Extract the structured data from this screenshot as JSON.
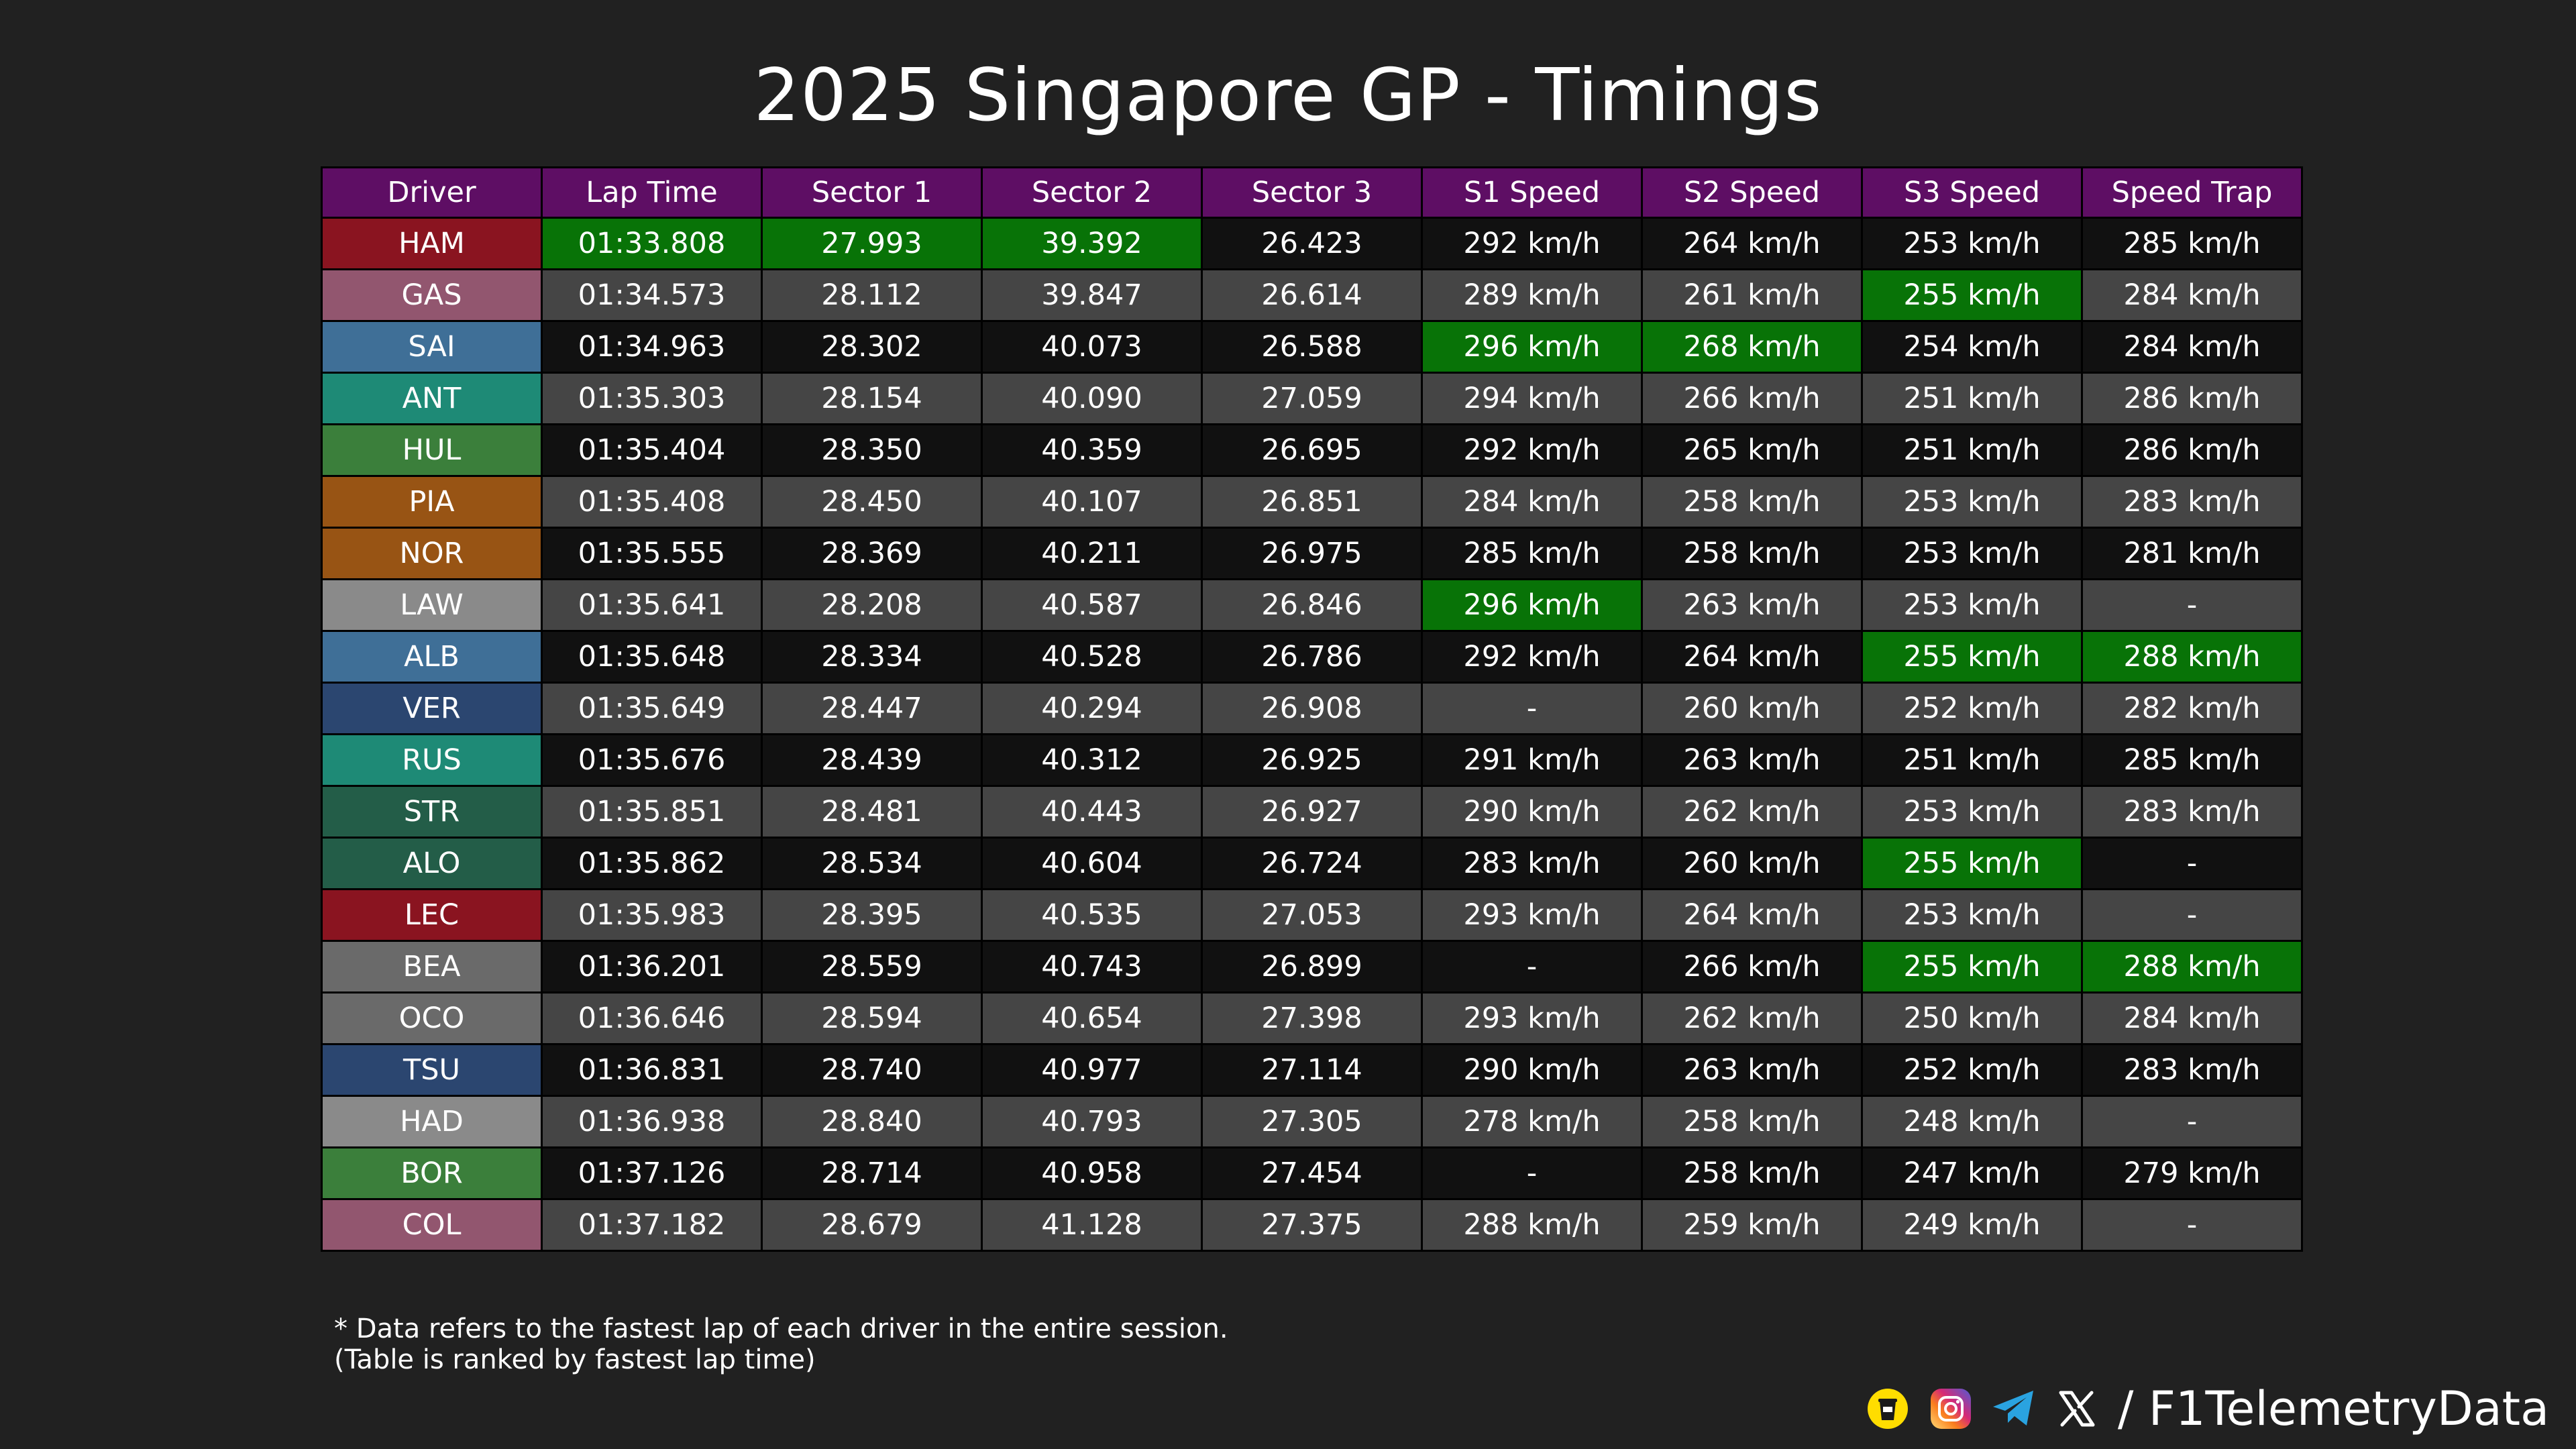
{
  "title": "2025 Singapore GP - Timings",
  "watermark": "@F1TelemetryData",
  "colors": {
    "background": "#212121",
    "header": "#5e0e64",
    "best": "#087307",
    "row_dark": "#111111",
    "row_light": "#454545"
  },
  "chart_data": {
    "type": "table",
    "title": "2025 Singapore GP - Timings",
    "columns": [
      "Driver",
      "Lap Time",
      "Sector 1",
      "Sector 2",
      "Sector 3",
      "S1 Speed",
      "S2 Speed",
      "S3 Speed",
      "Speed Trap"
    ],
    "rows": [
      {
        "driver": "HAM",
        "team_color": "#8a1420",
        "cells": [
          "01:33.808",
          "27.993",
          "39.392",
          "26.423",
          "292 km/h",
          "264 km/h",
          "253 km/h",
          "285 km/h"
        ],
        "best": [
          1,
          2,
          3
        ]
      },
      {
        "driver": "GAS",
        "team_color": "#92566f",
        "cells": [
          "01:34.573",
          "28.112",
          "39.847",
          "26.614",
          "289 km/h",
          "261 km/h",
          "255 km/h",
          "284 km/h"
        ],
        "best": [
          7
        ]
      },
      {
        "driver": "SAI",
        "team_color": "#3f6f97",
        "cells": [
          "01:34.963",
          "28.302",
          "40.073",
          "26.588",
          "296 km/h",
          "268 km/h",
          "254 km/h",
          "284 km/h"
        ],
        "best": [
          5,
          6
        ]
      },
      {
        "driver": "ANT",
        "team_color": "#1e8a76",
        "cells": [
          "01:35.303",
          "28.154",
          "40.090",
          "27.059",
          "294 km/h",
          "266 km/h",
          "251 km/h",
          "286 km/h"
        ],
        "best": []
      },
      {
        "driver": "HUL",
        "team_color": "#3b7f3b",
        "cells": [
          "01:35.404",
          "28.350",
          "40.359",
          "26.695",
          "292 km/h",
          "265 km/h",
          "251 km/h",
          "286 km/h"
        ],
        "best": []
      },
      {
        "driver": "PIA",
        "team_color": "#985414",
        "cells": [
          "01:35.408",
          "28.450",
          "40.107",
          "26.851",
          "284 km/h",
          "258 km/h",
          "253 km/h",
          "283 km/h"
        ],
        "best": []
      },
      {
        "driver": "NOR",
        "team_color": "#985414",
        "cells": [
          "01:35.555",
          "28.369",
          "40.211",
          "26.975",
          "285 km/h",
          "258 km/h",
          "253 km/h",
          "281 km/h"
        ],
        "best": []
      },
      {
        "driver": "LAW",
        "team_color": "#8a8a8a",
        "cells": [
          "01:35.641",
          "28.208",
          "40.587",
          "26.846",
          "296 km/h",
          "263 km/h",
          "253 km/h",
          "-"
        ],
        "best": [
          5
        ]
      },
      {
        "driver": "ALB",
        "team_color": "#3f6f97",
        "cells": [
          "01:35.648",
          "28.334",
          "40.528",
          "26.786",
          "292 km/h",
          "264 km/h",
          "255 km/h",
          "288 km/h"
        ],
        "best": [
          7,
          8
        ]
      },
      {
        "driver": "VER",
        "team_color": "#2b4670",
        "cells": [
          "01:35.649",
          "28.447",
          "40.294",
          "26.908",
          "-",
          "260 km/h",
          "252 km/h",
          "282 km/h"
        ],
        "best": []
      },
      {
        "driver": "RUS",
        "team_color": "#1e8a76",
        "cells": [
          "01:35.676",
          "28.439",
          "40.312",
          "26.925",
          "291 km/h",
          "263 km/h",
          "251 km/h",
          "285 km/h"
        ],
        "best": []
      },
      {
        "driver": "STR",
        "team_color": "#235d48",
        "cells": [
          "01:35.851",
          "28.481",
          "40.443",
          "26.927",
          "290 km/h",
          "262 km/h",
          "253 km/h",
          "283 km/h"
        ],
        "best": []
      },
      {
        "driver": "ALO",
        "team_color": "#235d48",
        "cells": [
          "01:35.862",
          "28.534",
          "40.604",
          "26.724",
          "283 km/h",
          "260 km/h",
          "255 km/h",
          "-"
        ],
        "best": [
          7
        ]
      },
      {
        "driver": "LEC",
        "team_color": "#8a1420",
        "cells": [
          "01:35.983",
          "28.395",
          "40.535",
          "27.053",
          "293 km/h",
          "264 km/h",
          "253 km/h",
          "-"
        ],
        "best": []
      },
      {
        "driver": "BEA",
        "team_color": "#6a6a6a",
        "cells": [
          "01:36.201",
          "28.559",
          "40.743",
          "26.899",
          "-",
          "266 km/h",
          "255 km/h",
          "288 km/h"
        ],
        "best": [
          7,
          8
        ]
      },
      {
        "driver": "OCO",
        "team_color": "#6a6a6a",
        "cells": [
          "01:36.646",
          "28.594",
          "40.654",
          "27.398",
          "293 km/h",
          "262 km/h",
          "250 km/h",
          "284 km/h"
        ],
        "best": []
      },
      {
        "driver": "TSU",
        "team_color": "#2b4670",
        "cells": [
          "01:36.831",
          "28.740",
          "40.977",
          "27.114",
          "290 km/h",
          "263 km/h",
          "252 km/h",
          "283 km/h"
        ],
        "best": []
      },
      {
        "driver": "HAD",
        "team_color": "#8a8a8a",
        "cells": [
          "01:36.938",
          "28.840",
          "40.793",
          "27.305",
          "278 km/h",
          "258 km/h",
          "248 km/h",
          "-"
        ],
        "best": []
      },
      {
        "driver": "BOR",
        "team_color": "#3b7f3b",
        "cells": [
          "01:37.126",
          "28.714",
          "40.958",
          "27.454",
          "-",
          "258 km/h",
          "247 km/h",
          "279 km/h"
        ],
        "best": []
      },
      {
        "driver": "COL",
        "team_color": "#92566f",
        "cells": [
          "01:37.182",
          "28.679",
          "41.128",
          "27.375",
          "288 km/h",
          "259 km/h",
          "249 km/h",
          "-"
        ],
        "best": []
      }
    ]
  },
  "footnote": {
    "line1": "* Data refers to the fastest lap of each driver in the entire session.",
    "line2": "(Table is ranked by fastest lap time)"
  },
  "social": {
    "icons": [
      "buymeacoffee-icon",
      "instagram-icon",
      "telegram-icon",
      "x-icon"
    ],
    "handle": "/ F1TelemetryData"
  }
}
